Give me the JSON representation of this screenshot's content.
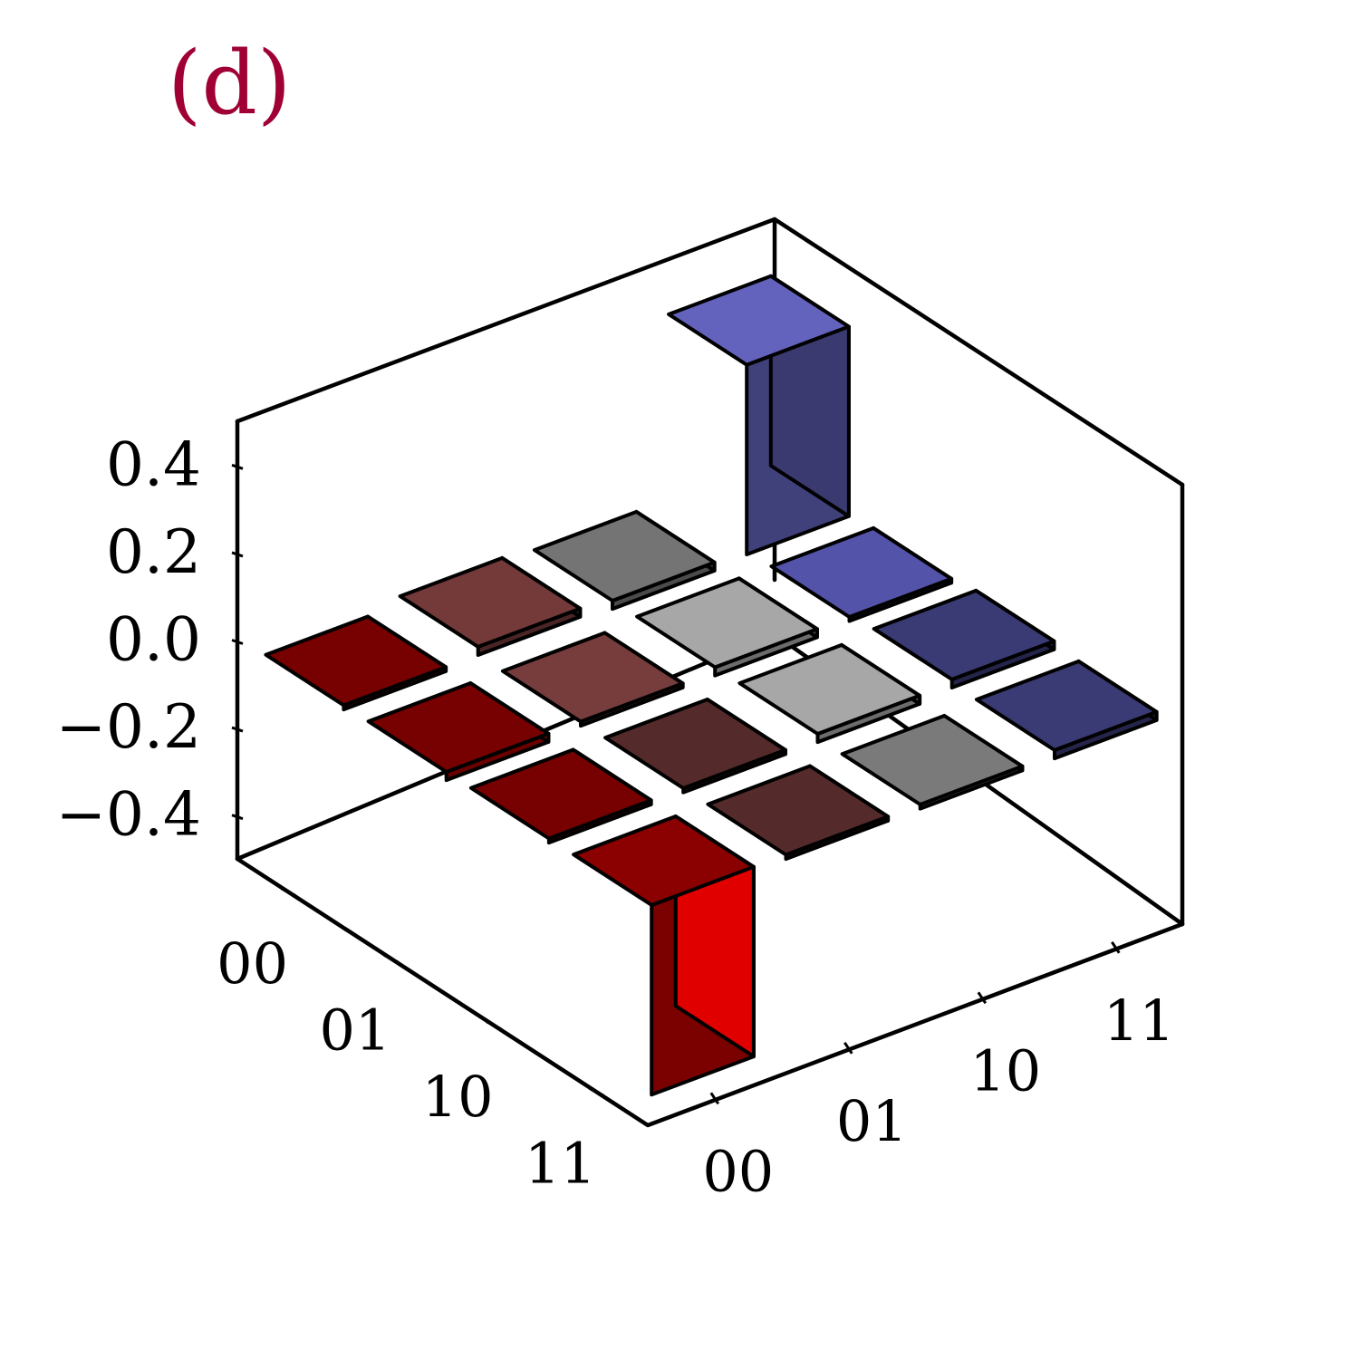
{
  "panel_label": "(d)",
  "chart_data": {
    "type": "bar3d",
    "title": "",
    "row_ticks": [
      "00",
      "01",
      "10",
      "11"
    ],
    "col_ticks": [
      "00",
      "01",
      "10",
      "11"
    ],
    "z_ticks": [
      "0.4",
      "0.2",
      "0.0",
      "−0.2",
      "−0.4"
    ],
    "zlim": [
      -0.5,
      0.5
    ],
    "bars": [
      {
        "row": "00",
        "col": "00",
        "value": -0.01,
        "color": "#c00000"
      },
      {
        "row": "00",
        "col": "01",
        "value": 0.02,
        "color": "#884444"
      },
      {
        "row": "00",
        "col": "10",
        "value": 0.0,
        "color": "#888888"
      },
      {
        "row": "00",
        "col": "11",
        "value": 0.46,
        "color": "#7474e0"
      },
      {
        "row": "01",
        "col": "00",
        "value": -0.02,
        "color": "#c00000"
      },
      {
        "row": "01",
        "col": "01",
        "value": -0.01,
        "color": "#c06262"
      },
      {
        "row": "01",
        "col": "10",
        "value": 0.0,
        "color": "#c4c4c4"
      },
      {
        "row": "01",
        "col": "11",
        "value": 0.01,
        "color": "#6262c8"
      },
      {
        "row": "10",
        "col": "00",
        "value": -0.01,
        "color": "#c00000"
      },
      {
        "row": "10",
        "col": "01",
        "value": -0.01,
        "color": "#884444"
      },
      {
        "row": "10",
        "col": "10",
        "value": 0.0,
        "color": "#c4c4c4"
      },
      {
        "row": "10",
        "col": "11",
        "value": 0.02,
        "color": "#444488"
      },
      {
        "row": "11",
        "col": "00",
        "value": -0.46,
        "color": "#e00000"
      },
      {
        "row": "11",
        "col": "01",
        "value": -0.01,
        "color": "#884444"
      },
      {
        "row": "11",
        "col": "10",
        "value": -0.01,
        "color": "#c4c4c4"
      },
      {
        "row": "11",
        "col": "11",
        "value": 0.0,
        "color": "#444488"
      }
    ]
  }
}
